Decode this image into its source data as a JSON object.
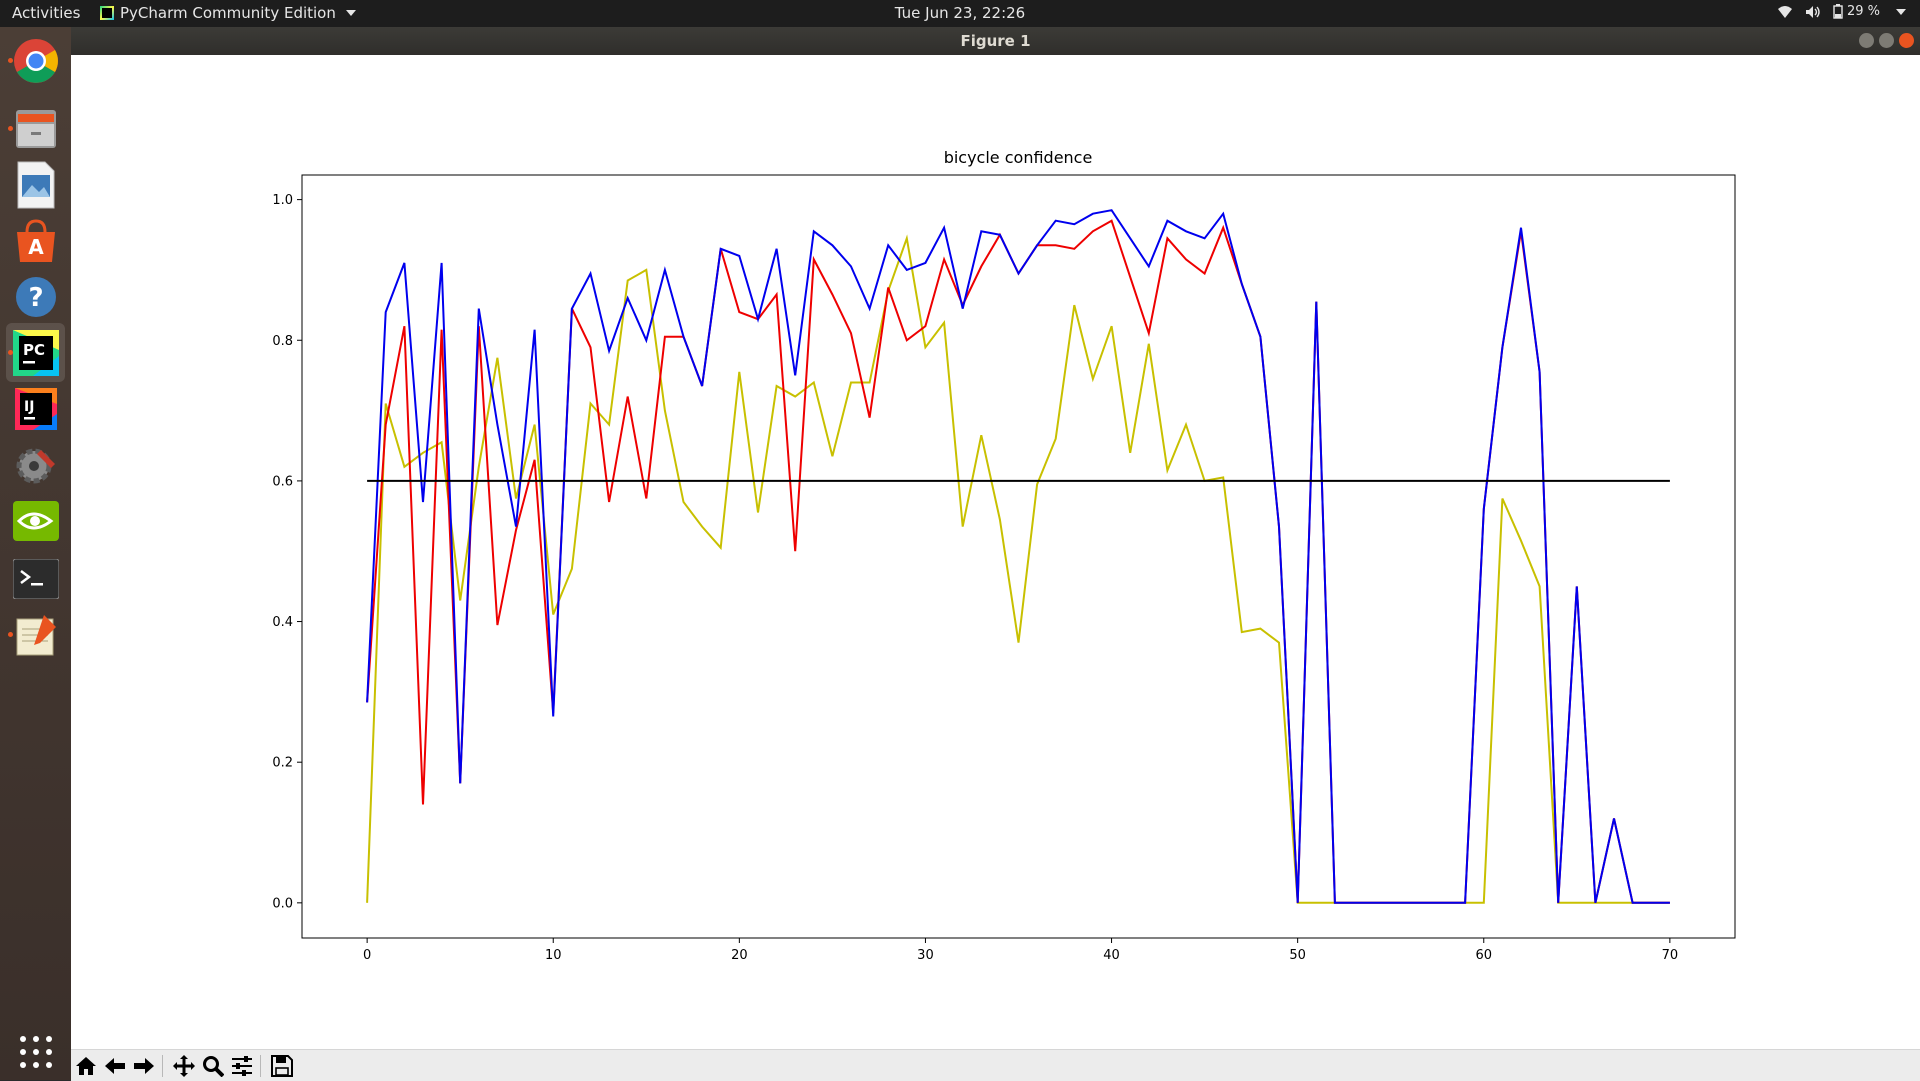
{
  "topbar": {
    "activities": "Activities",
    "app_name": "PyCharm Community Edition",
    "clock": "Tue Jun 23, 22:26",
    "battery": "29 %"
  },
  "dock": {
    "items": [
      {
        "name": "chrome-icon",
        "color": "#4285f4"
      },
      {
        "name": "files-icon",
        "color": "#8a8a8a"
      },
      {
        "name": "image-viewer-icon",
        "color": "#3d7ab8"
      },
      {
        "name": "software-center-icon",
        "color": "#e95420"
      },
      {
        "name": "help-icon",
        "color": "#3d7ab8"
      },
      {
        "name": "pycharm-icon",
        "color": "#000000"
      },
      {
        "name": "intellij-icon",
        "color": "#000000"
      },
      {
        "name": "settings-icon",
        "color": "#7a7a7a"
      },
      {
        "name": "nvidia-icon",
        "color": "#76b900"
      },
      {
        "name": "terminal-icon",
        "color": "#2c2c2c"
      },
      {
        "name": "text-editor-icon",
        "color": "#e8e2c4"
      }
    ],
    "app_grid": "show-applications-icon"
  },
  "window": {
    "title": "Figure 1"
  },
  "toolbar": {
    "buttons": [
      "home-icon",
      "back-icon",
      "forward-icon",
      "pan-icon",
      "zoom-icon",
      "configure-icon",
      "save-icon"
    ]
  },
  "chart_data": {
    "type": "line",
    "title": "bicycle confidence",
    "xlabel": "",
    "ylabel": "",
    "xlim": [
      -3.5,
      73.5
    ],
    "ylim": [
      -0.05,
      1.035
    ],
    "x_ticks": [
      0,
      10,
      20,
      30,
      40,
      50,
      60,
      70
    ],
    "y_ticks": [
      0.0,
      0.2,
      0.4,
      0.6,
      0.8,
      1.0
    ],
    "grid": false,
    "series": [
      {
        "color": "#c8c000",
        "x": [
          0,
          1,
          2,
          3,
          4,
          5,
          6,
          7,
          8,
          9,
          10,
          11,
          12,
          13,
          14,
          15,
          16,
          17,
          18,
          19,
          20,
          21,
          22,
          23,
          24,
          25,
          26,
          27,
          28,
          29,
          30,
          31,
          32,
          33,
          34,
          35,
          36,
          37,
          38,
          39,
          40,
          41,
          42,
          43,
          44,
          45,
          46,
          47,
          48,
          49,
          50,
          51,
          52,
          53,
          54,
          55,
          56,
          57,
          58,
          59,
          60,
          61,
          62,
          63,
          64,
          65,
          66,
          67,
          68,
          69,
          70
        ],
        "y": [
          0.0,
          0.71,
          0.62,
          0.64,
          0.655,
          0.43,
          0.62,
          0.775,
          0.575,
          0.68,
          0.41,
          0.475,
          0.71,
          0.68,
          0.885,
          0.9,
          0.7,
          0.57,
          0.535,
          0.505,
          0.755,
          0.555,
          0.735,
          0.72,
          0.74,
          0.635,
          0.74,
          0.74,
          0.87,
          0.945,
          0.79,
          0.825,
          0.535,
          0.665,
          0.545,
          0.37,
          0.595,
          0.66,
          0.85,
          0.745,
          0.82,
          0.64,
          0.795,
          0.615,
          0.68,
          0.6,
          0.605,
          0.385,
          0.39,
          0.37,
          0.0,
          0.0,
          0.0,
          0.0,
          0.0,
          0.0,
          0.0,
          0.0,
          0.0,
          0.0,
          0.0,
          0.575,
          0.515,
          0.45,
          0.0,
          0.0,
          0.0,
          0.0,
          0.0,
          0.0,
          0.0
        ]
      },
      {
        "color": "#ee0000",
        "x": [
          0,
          1,
          2,
          3,
          4,
          5,
          6,
          7,
          8,
          9,
          10,
          11,
          12,
          13,
          14,
          15,
          16,
          17,
          18,
          19,
          20,
          21,
          22,
          23,
          24,
          25,
          26,
          27,
          28,
          29,
          30,
          31,
          32,
          33,
          34,
          35,
          36,
          37,
          38,
          39,
          40,
          41,
          42,
          43,
          44,
          45,
          46,
          47,
          48,
          49,
          50,
          51,
          52,
          53,
          54,
          55,
          56,
          57,
          58,
          59,
          60,
          61,
          62,
          63,
          64,
          65,
          66,
          67,
          68,
          69,
          70
        ],
        "y": [
          0.285,
          0.68,
          0.82,
          0.14,
          0.815,
          0.17,
          0.82,
          0.395,
          0.53,
          0.63,
          0.27,
          0.845,
          0.79,
          0.57,
          0.72,
          0.575,
          0.805,
          0.805,
          0.735,
          0.93,
          0.84,
          0.83,
          0.865,
          0.5,
          0.915,
          0.865,
          0.81,
          0.69,
          0.875,
          0.8,
          0.82,
          0.915,
          0.85,
          0.905,
          0.95,
          0.895,
          0.935,
          0.935,
          0.93,
          0.955,
          0.97,
          0.89,
          0.81,
          0.945,
          0.915,
          0.895,
          0.96,
          0.88,
          0.805,
          0.535,
          0.0,
          0.855,
          0.0,
          0.0,
          0.0,
          0.0,
          0.0,
          0.0,
          0.0,
          0.0,
          0.56,
          0.79,
          0.955,
          0.755,
          0.0,
          0.45,
          0.0,
          0.12,
          0.0,
          0.0,
          0.0
        ]
      },
      {
        "color": "#0000ee",
        "x": [
          0,
          1,
          2,
          3,
          4,
          5,
          6,
          7,
          8,
          9,
          10,
          11,
          12,
          13,
          14,
          15,
          16,
          17,
          18,
          19,
          20,
          21,
          22,
          23,
          24,
          25,
          26,
          27,
          28,
          29,
          30,
          31,
          32,
          33,
          34,
          35,
          36,
          37,
          38,
          39,
          40,
          41,
          42,
          43,
          44,
          45,
          46,
          47,
          48,
          49,
          50,
          51,
          52,
          53,
          54,
          55,
          56,
          57,
          58,
          59,
          60,
          61,
          62,
          63,
          64,
          65,
          66,
          67,
          68,
          69,
          70
        ],
        "y": [
          0.285,
          0.84,
          0.91,
          0.57,
          0.91,
          0.17,
          0.845,
          0.68,
          0.535,
          0.815,
          0.265,
          0.845,
          0.895,
          0.785,
          0.86,
          0.8,
          0.9,
          0.805,
          0.735,
          0.93,
          0.92,
          0.83,
          0.93,
          0.75,
          0.955,
          0.935,
          0.905,
          0.845,
          0.935,
          0.9,
          0.91,
          0.96,
          0.845,
          0.955,
          0.95,
          0.895,
          0.935,
          0.97,
          0.965,
          0.98,
          0.985,
          0.945,
          0.905,
          0.97,
          0.955,
          0.945,
          0.98,
          0.88,
          0.805,
          0.535,
          0.0,
          0.855,
          0.0,
          0.0,
          0.0,
          0.0,
          0.0,
          0.0,
          0.0,
          0.0,
          0.56,
          0.79,
          0.96,
          0.755,
          0.0,
          0.45,
          0.0,
          0.12,
          0.0,
          0.0,
          0.0
        ]
      },
      {
        "color": "#000000",
        "x": [
          0,
          70
        ],
        "y": [
          0.6,
          0.6
        ]
      }
    ]
  }
}
